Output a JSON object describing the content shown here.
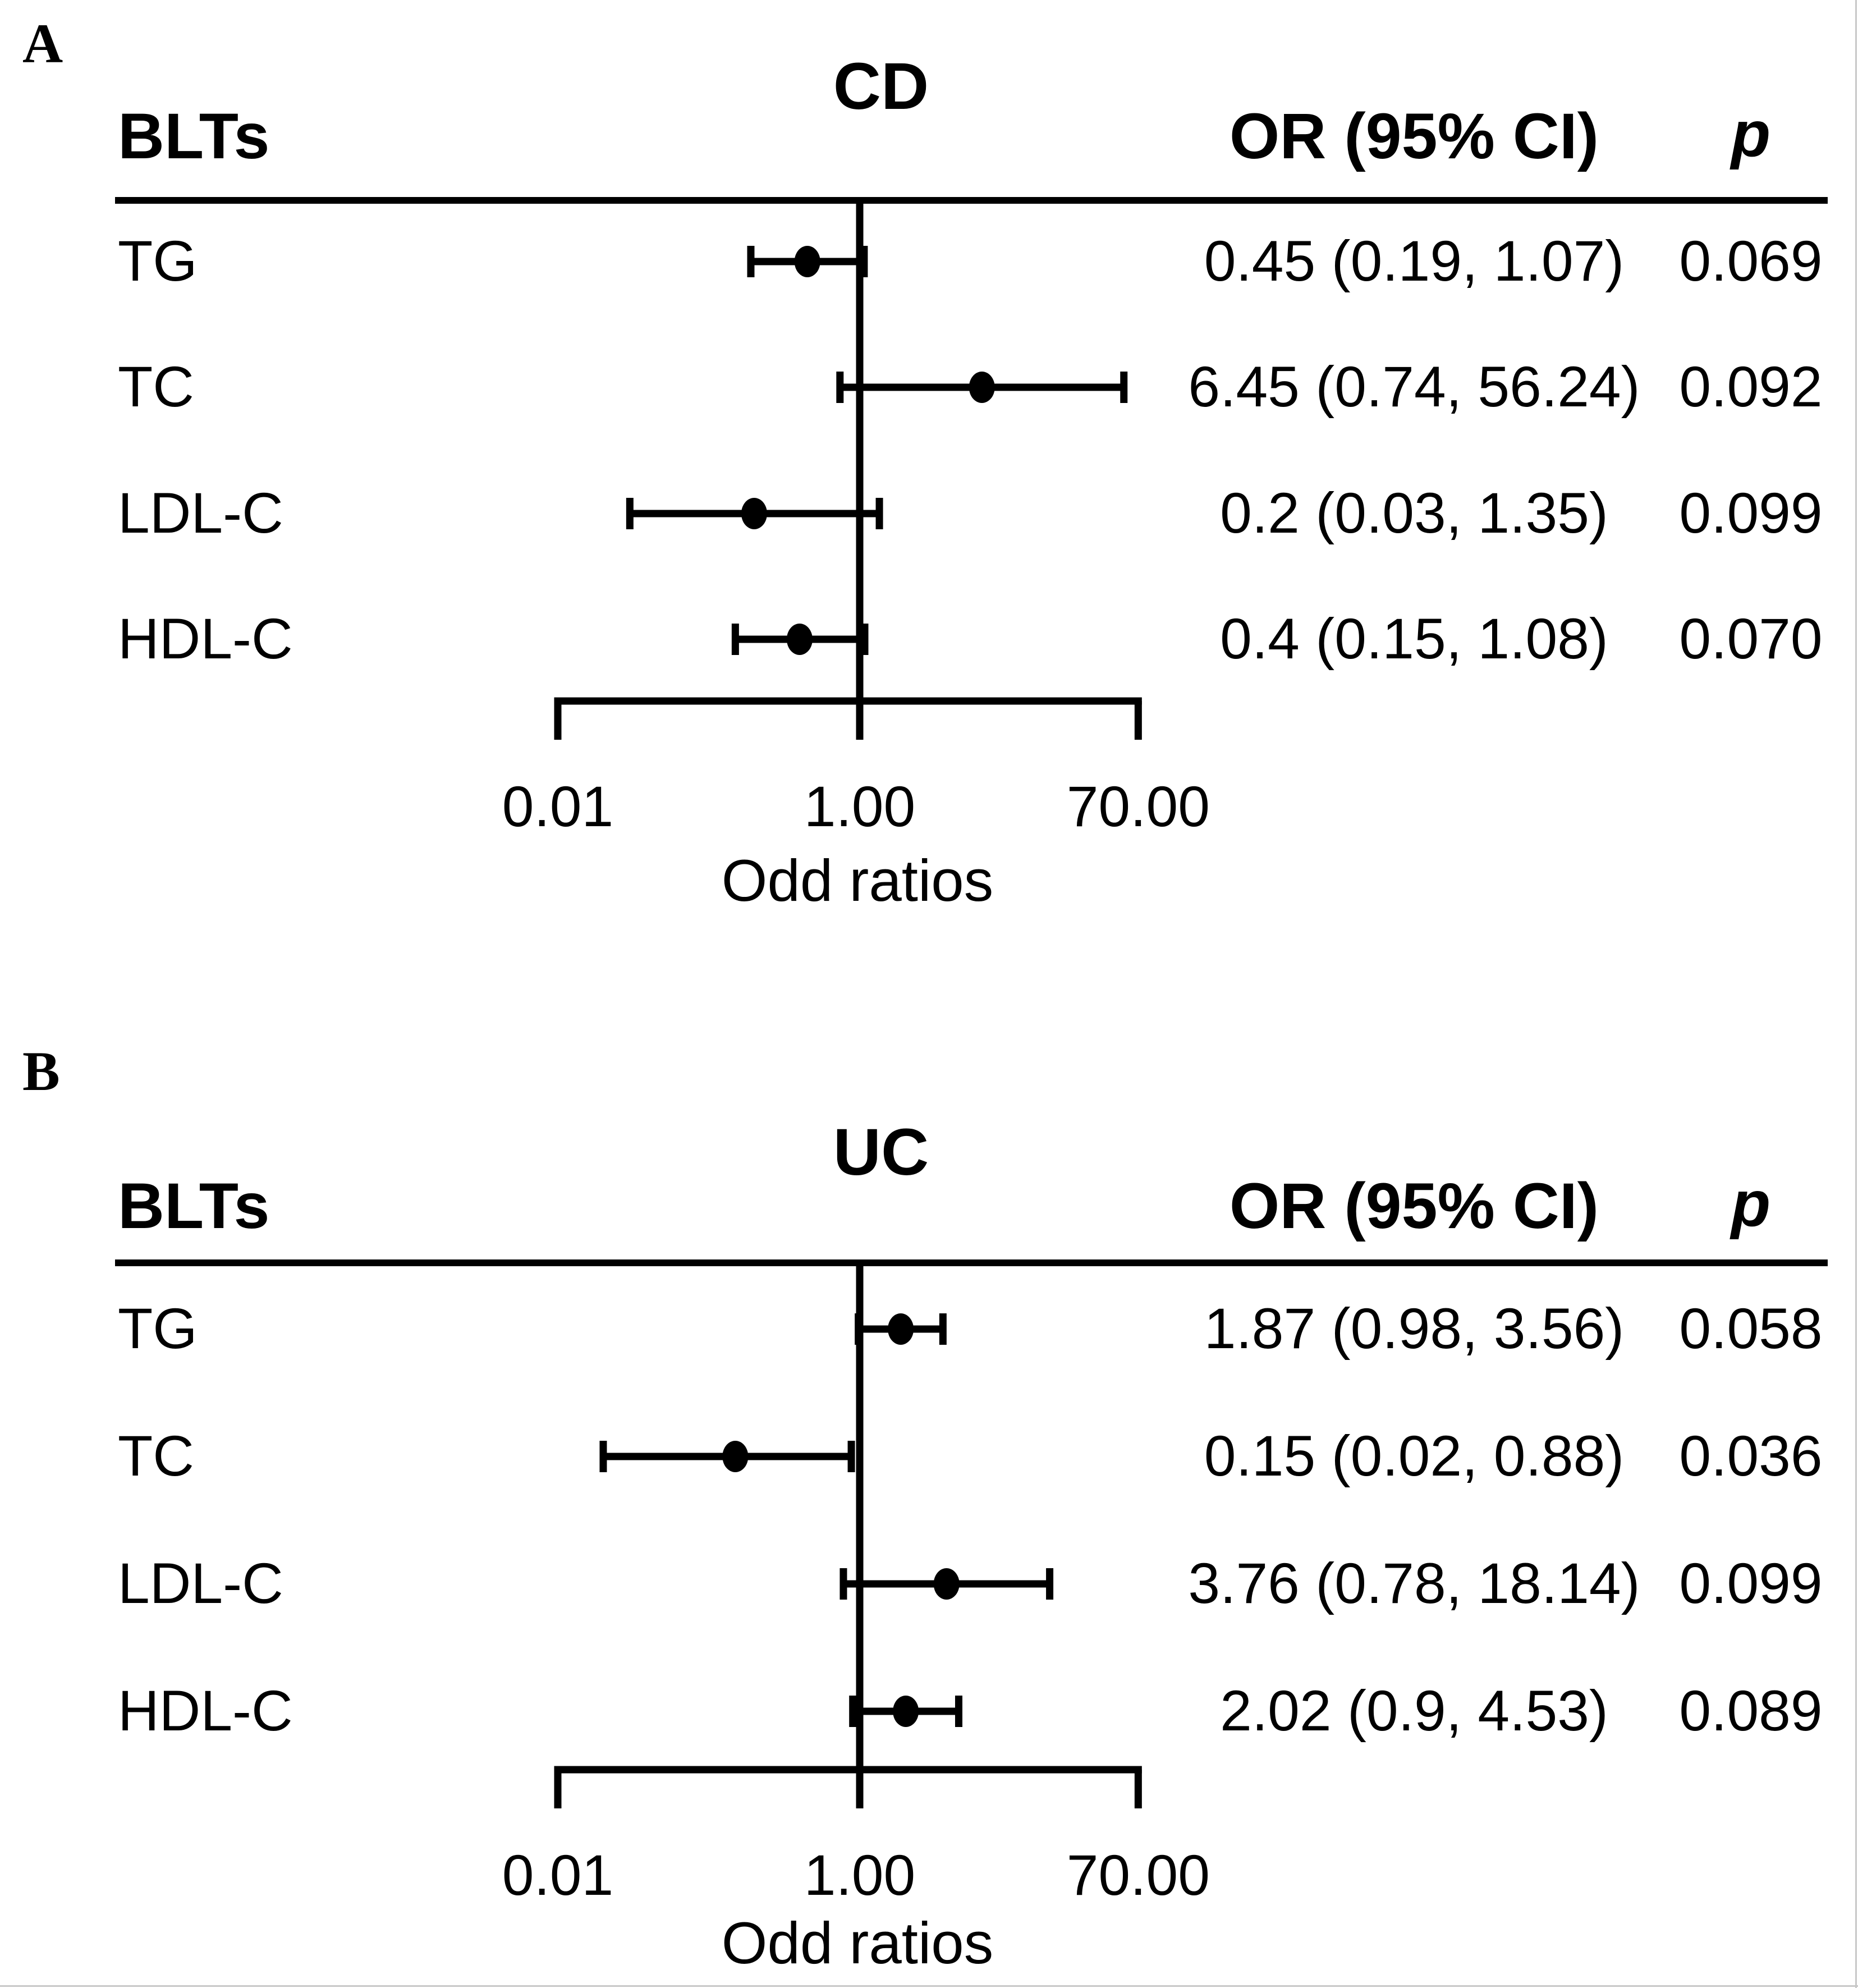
{
  "figure": {
    "background": "#ffffff",
    "ink_color": "#000000",
    "edge_border_color": "#c8c8c8"
  },
  "chart_data": [
    {
      "type": "forest",
      "panel_label": "A",
      "title": "CD",
      "col_headers": {
        "exposure": "BLTs",
        "or_ci": "OR (95% CI)",
        "p": "p"
      },
      "xlabel": "Odd ratios",
      "axis": {
        "scale": "log10",
        "ticks": [
          0.01,
          1.0,
          70.0
        ],
        "tick_labels": [
          "0.01",
          "1.00",
          "70.00"
        ],
        "reference_line": 1.0
      },
      "rows": [
        {
          "label": "TG",
          "or": 0.45,
          "ci_low": 0.19,
          "ci_high": 1.07,
          "or_ci_text": "0.45 (0.19, 1.07)",
          "p": "0.069"
        },
        {
          "label": "TC",
          "or": 6.45,
          "ci_low": 0.74,
          "ci_high": 56.24,
          "or_ci_text": "6.45 (0.74, 56.24)",
          "p": "0.092"
        },
        {
          "label": "LDL-C",
          "or": 0.2,
          "ci_low": 0.03,
          "ci_high": 1.35,
          "or_ci_text": "0.2 (0.03, 1.35)",
          "p": "0.099"
        },
        {
          "label": "HDL-C",
          "or": 0.4,
          "ci_low": 0.15,
          "ci_high": 1.08,
          "or_ci_text": "0.4 (0.15, 1.08)",
          "p": "0.070"
        }
      ]
    },
    {
      "type": "forest",
      "panel_label": "B",
      "title": "UC",
      "col_headers": {
        "exposure": "BLTs",
        "or_ci": "OR (95% CI)",
        "p": "p"
      },
      "xlabel": "Odd ratios",
      "axis": {
        "scale": "log10",
        "ticks": [
          0.01,
          1.0,
          70.0
        ],
        "tick_labels": [
          "0.01",
          "1.00",
          "70.00"
        ],
        "reference_line": 1.0
      },
      "rows": [
        {
          "label": "TG",
          "or": 1.87,
          "ci_low": 0.98,
          "ci_high": 3.56,
          "or_ci_text": "1.87 (0.98, 3.56)",
          "p": "0.058"
        },
        {
          "label": "TC",
          "or": 0.15,
          "ci_low": 0.02,
          "ci_high": 0.88,
          "or_ci_text": "0.15 (0.02, 0.88)",
          "p": "0.036"
        },
        {
          "label": "LDL-C",
          "or": 3.76,
          "ci_low": 0.78,
          "ci_high": 18.14,
          "or_ci_text": "3.76 (0.78, 18.14)",
          "p": "0.099"
        },
        {
          "label": "HDL-C",
          "or": 2.02,
          "ci_low": 0.9,
          "ci_high": 4.53,
          "or_ci_text": "2.02 (0.9, 4.53)",
          "p": "0.089"
        }
      ]
    }
  ]
}
